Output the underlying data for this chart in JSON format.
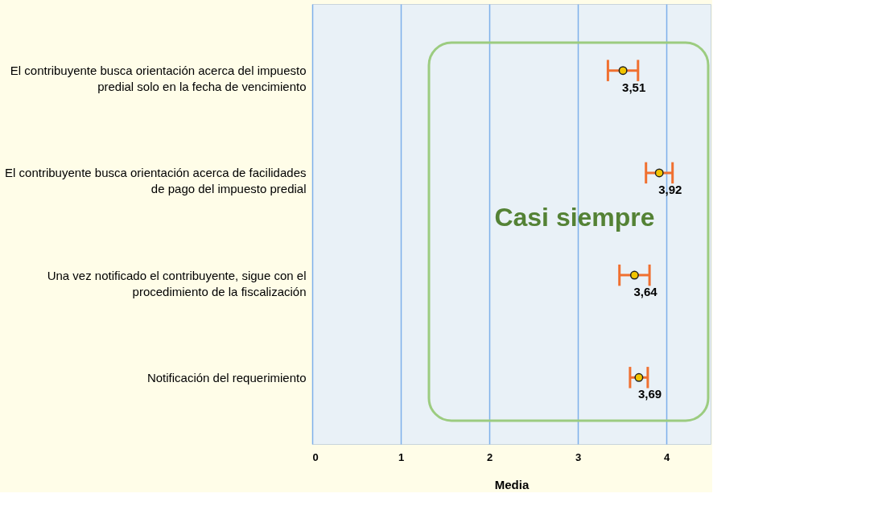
{
  "chart_data": {
    "type": "scatter",
    "orientation": "horizontal",
    "xlabel": "Media",
    "categories": [
      "El contribuyente busca orientación acerca del impuesto predial solo en la fecha de vencimiento",
      "El contribuyente busca orientación acerca de facilidades de pago del impuesto predial",
      "Una vez notificado el contribuyente, sigue con el procedimiento de la fiscalización",
      "Notificación del requerimiento"
    ],
    "values": [
      3.51,
      3.92,
      3.64,
      3.69
    ],
    "errors": [
      0.17,
      0.15,
      0.17,
      0.1
    ],
    "value_labels": [
      "3,51",
      "3,92",
      "3,64",
      "3,69"
    ],
    "color": "#f2c500",
    "marker": "circle",
    "xlim": [
      0,
      4.5
    ],
    "xticks": [
      0,
      1,
      2,
      3,
      4
    ],
    "grid": "x",
    "annotations": [
      "Casi siempre"
    ]
  }
}
